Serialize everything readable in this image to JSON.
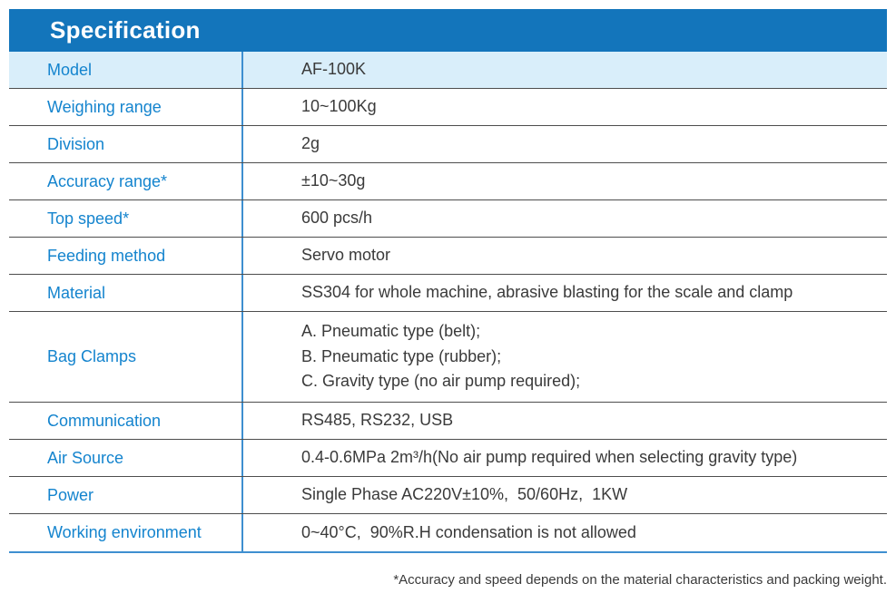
{
  "table": {
    "title": "Specification",
    "rows": [
      {
        "label": "Model",
        "value": "AF-100K",
        "highlight": true
      },
      {
        "label": "Weighing range",
        "value": "10~100Kg"
      },
      {
        "label": "Division",
        "value": "2g"
      },
      {
        "label": "Accuracy range*",
        "value": "±10~30g"
      },
      {
        "label": "Top speed*",
        "value": "600 pcs/h"
      },
      {
        "label": "Feeding method",
        "value": "Servo motor"
      },
      {
        "label": "Material",
        "value": "SS304 for whole machine, abrasive blasting for the scale and clamp"
      },
      {
        "label": "Bag Clamps",
        "value": "A. Pneumatic type (belt);\nB. Pneumatic type (rubber);\nC. Gravity type (no air pump required);",
        "tall": true
      },
      {
        "label": "Communication",
        "value": "RS485, RS232, USB"
      },
      {
        "label": "Air Source",
        "value": "0.4-0.6MPa 2m³/h(No air pump required when selecting gravity type)"
      },
      {
        "label": "Power",
        "value": "Single Phase AC220V±10%,  50/60Hz,  1KW"
      },
      {
        "label": "Working environment",
        "value": "0~40°C,  90%R.H condensation is not allowed"
      }
    ]
  },
  "footnote": "*Accuracy and speed depends on the material characteristics and packing weight.",
  "colors": {
    "header_bg": "#1375BB",
    "highlight_row_bg": "#D9EEFA",
    "label_text": "#1484CE",
    "value_text": "#3A3A3A",
    "row_divider": "#4D4D4D",
    "column_divider": "#3E8FD0",
    "bottom_border": "#3E8FD0"
  }
}
